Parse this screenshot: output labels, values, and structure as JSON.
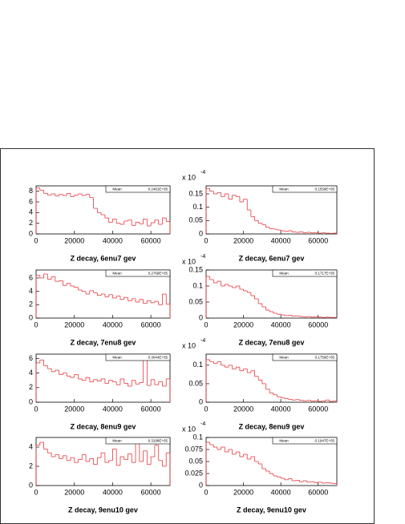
{
  "chart_data": [
    {
      "type": "histogram",
      "title": "Z decay, 6enu7 gev",
      "stats_label": "Mean",
      "stats_value": "0.2481E+05",
      "color": "#e8383d",
      "bins": [
        0,
        2000,
        4000,
        6000,
        8000,
        10000,
        12000,
        14000,
        16000,
        18000,
        20000,
        22000,
        24000,
        26000,
        28000,
        30000,
        32000,
        34000,
        36000,
        38000,
        40000,
        42000,
        44000,
        46000,
        48000,
        50000,
        52000,
        54000,
        56000,
        58000,
        60000,
        62000,
        64000,
        66000,
        68000,
        70000
      ],
      "values": [
        8.6,
        8.2,
        7.6,
        7.3,
        7.5,
        7.1,
        7.4,
        7.2,
        7.6,
        7.0,
        7.3,
        7.5,
        7.2,
        7.4,
        6.8,
        4.8,
        4.0,
        3.6,
        3.0,
        2.2,
        2.8,
        2.0,
        1.8,
        2.4,
        2.6,
        1.6,
        2.2,
        1.9,
        2.8,
        1.5,
        2.1,
        2.6,
        1.8,
        3.0,
        2.3
      ],
      "xlim": [
        0,
        70000
      ],
      "xticks": [
        0,
        20000,
        40000,
        60000
      ],
      "ylim": [
        0,
        9
      ],
      "yticks": [
        0,
        2,
        4,
        6,
        8
      ]
    },
    {
      "type": "histogram",
      "title": "Z decay, 6enu7 gev",
      "stats_label": "Mean",
      "stats_value": "0.1559E+05",
      "color": "#e8383d",
      "multiplier": "x 10",
      "exponent": "-4",
      "bins": [
        0,
        2000,
        4000,
        6000,
        8000,
        10000,
        12000,
        14000,
        16000,
        18000,
        20000,
        22000,
        24000,
        26000,
        28000,
        30000,
        32000,
        34000,
        36000,
        38000,
        40000,
        42000,
        44000,
        46000,
        48000,
        50000,
        52000,
        54000,
        56000,
        58000,
        60000,
        62000,
        64000,
        66000,
        68000,
        70000
      ],
      "values": [
        0.17,
        0.16,
        0.15,
        0.155,
        0.14,
        0.15,
        0.13,
        0.145,
        0.14,
        0.12,
        0.13,
        0.09,
        0.065,
        0.05,
        0.04,
        0.035,
        0.025,
        0.02,
        0.018,
        0.015,
        0.012,
        0.01,
        0.012,
        0.008,
        0.006,
        0.008,
        0.005,
        0.006,
        0.004,
        0.005,
        0.003,
        0.004,
        0.003,
        0.002,
        0.003
      ],
      "xlim": [
        0,
        70000
      ],
      "xticks": [
        0,
        20000,
        40000,
        60000
      ],
      "ylim": [
        0,
        0.18
      ],
      "yticks": [
        0,
        0.05,
        0.1,
        0.15
      ]
    },
    {
      "type": "histogram",
      "title": "Z decay, 7enu8 gev",
      "stats_label": "Mean",
      "stats_value": "0.2769E+05",
      "color": "#e8383d",
      "bins": [
        0,
        2000,
        4000,
        6000,
        8000,
        10000,
        12000,
        14000,
        16000,
        18000,
        20000,
        22000,
        24000,
        26000,
        28000,
        30000,
        32000,
        34000,
        36000,
        38000,
        40000,
        42000,
        44000,
        46000,
        48000,
        50000,
        52000,
        54000,
        56000,
        58000,
        60000,
        62000,
        64000,
        66000,
        68000,
        70000
      ],
      "values": [
        6.4,
        6.0,
        6.6,
        5.8,
        6.2,
        5.5,
        5.6,
        4.9,
        5.2,
        4.8,
        4.6,
        4.2,
        4.0,
        3.6,
        4.1,
        3.8,
        3.4,
        3.6,
        3.2,
        3.5,
        3.0,
        3.3,
        2.8,
        3.1,
        2.6,
        2.9,
        2.4,
        2.8,
        2.2,
        2.6,
        2.3,
        2.5,
        2.0,
        3.6,
        2.1
      ],
      "xlim": [
        0,
        70000
      ],
      "xticks": [
        0,
        20000,
        40000,
        60000
      ],
      "ylim": [
        0,
        7.2
      ],
      "yticks": [
        0,
        2,
        4,
        6
      ]
    },
    {
      "type": "histogram",
      "title": "Z decay, 7enu8 gev",
      "stats_label": "Mean",
      "stats_value": "0.1717E+05",
      "color": "#e8383d",
      "multiplier": "x 10",
      "exponent": "-4",
      "bins": [
        0,
        2000,
        4000,
        6000,
        8000,
        10000,
        12000,
        14000,
        16000,
        18000,
        20000,
        22000,
        24000,
        26000,
        28000,
        30000,
        32000,
        34000,
        36000,
        38000,
        40000,
        42000,
        44000,
        46000,
        48000,
        50000,
        52000,
        54000,
        56000,
        58000,
        60000,
        62000,
        64000,
        66000,
        68000,
        70000
      ],
      "values": [
        0.13,
        0.12,
        0.11,
        0.115,
        0.1,
        0.105,
        0.1,
        0.095,
        0.1,
        0.09,
        0.085,
        0.08,
        0.07,
        0.06,
        0.045,
        0.035,
        0.025,
        0.02,
        0.015,
        0.012,
        0.01,
        0.008,
        0.009,
        0.006,
        0.007,
        0.005,
        0.004,
        0.005,
        0.003,
        0.004,
        0.003,
        0.002,
        0.003,
        0.002,
        0.002
      ],
      "xlim": [
        0,
        70000
      ],
      "xticks": [
        0,
        20000,
        40000,
        60000
      ],
      "ylim": [
        0,
        0.15
      ],
      "yticks": [
        0,
        0.05,
        0.1,
        0.15
      ]
    },
    {
      "type": "histogram",
      "title": "Z decay, 8enu9 gev",
      "stats_label": "Mean",
      "stats_value": "0.3044E+05",
      "color": "#e8383d",
      "bins": [
        0,
        2000,
        4000,
        6000,
        8000,
        10000,
        12000,
        14000,
        16000,
        18000,
        20000,
        22000,
        24000,
        26000,
        28000,
        30000,
        32000,
        34000,
        36000,
        38000,
        40000,
        42000,
        44000,
        46000,
        48000,
        50000,
        52000,
        54000,
        56000,
        58000,
        60000,
        62000,
        64000,
        66000,
        68000,
        70000
      ],
      "values": [
        5.4,
        5.8,
        5.0,
        4.6,
        4.2,
        4.4,
        3.8,
        4.0,
        3.6,
        3.4,
        3.8,
        3.2,
        3.0,
        3.4,
        2.8,
        3.1,
        2.9,
        3.2,
        2.6,
        3.0,
        2.8,
        2.4,
        3.2,
        2.6,
        2.2,
        3.0,
        2.5,
        2.7,
        6.0,
        2.3,
        3.1,
        2.4,
        2.8,
        2.2,
        3.2
      ],
      "xlim": [
        0,
        70000
      ],
      "xticks": [
        0,
        20000,
        40000,
        60000
      ],
      "ylim": [
        0,
        6.6
      ],
      "yticks": [
        0,
        2,
        4,
        6
      ]
    },
    {
      "type": "histogram",
      "title": "Z decay, 8enu9 gev",
      "stats_label": "Mean",
      "stats_value": "0.1759E+05",
      "color": "#e8383d",
      "multiplier": "x 10",
      "exponent": "-4",
      "bins": [
        0,
        2000,
        4000,
        6000,
        8000,
        10000,
        12000,
        14000,
        16000,
        18000,
        20000,
        22000,
        24000,
        26000,
        28000,
        30000,
        32000,
        34000,
        36000,
        38000,
        40000,
        42000,
        44000,
        46000,
        48000,
        50000,
        52000,
        54000,
        56000,
        58000,
        60000,
        62000,
        64000,
        66000,
        68000,
        70000
      ],
      "values": [
        0.115,
        0.11,
        0.105,
        0.11,
        0.1,
        0.095,
        0.1,
        0.09,
        0.095,
        0.085,
        0.09,
        0.08,
        0.085,
        0.07,
        0.06,
        0.05,
        0.035,
        0.025,
        0.02,
        0.015,
        0.012,
        0.01,
        0.008,
        0.006,
        0.007,
        0.005,
        0.004,
        0.005,
        0.003,
        0.004,
        0.002,
        0.003,
        0.006,
        0.002,
        0.003
      ],
      "xlim": [
        0,
        70000
      ],
      "xticks": [
        0,
        20000,
        40000,
        60000
      ],
      "ylim": [
        0,
        0.13
      ],
      "yticks": [
        0,
        0.05,
        0.1
      ]
    },
    {
      "type": "histogram",
      "title": "Z decay, 9enu10 gev",
      "stats_label": "Mean",
      "stats_value": "0.3198E+05",
      "color": "#e8383d",
      "bins": [
        0,
        2000,
        4000,
        6000,
        8000,
        10000,
        12000,
        14000,
        16000,
        18000,
        20000,
        22000,
        24000,
        26000,
        28000,
        30000,
        32000,
        34000,
        36000,
        38000,
        40000,
        42000,
        44000,
        46000,
        48000,
        50000,
        52000,
        54000,
        56000,
        58000,
        60000,
        62000,
        64000,
        66000,
        68000,
        70000
      ],
      "values": [
        4.2,
        4.5,
        3.8,
        3.4,
        3.0,
        3.2,
        2.8,
        3.1,
        2.6,
        2.9,
        2.4,
        2.7,
        3.2,
        2.5,
        2.8,
        2.2,
        2.9,
        3.4,
        2.4,
        2.6,
        3.8,
        2.1,
        3.0,
        2.7,
        3.3,
        2.4,
        4.8,
        2.5,
        3.6,
        2.2,
        3.0,
        4.2,
        2.6,
        2.0,
        3.4
      ],
      "xlim": [
        0,
        70000
      ],
      "xticks": [
        0,
        20000,
        40000,
        60000
      ],
      "ylim": [
        0,
        5
      ],
      "yticks": [
        0,
        2,
        4
      ]
    },
    {
      "type": "histogram",
      "title": "Z decay, 9enu10 gev",
      "stats_label": "Mean",
      "stats_value": "0.1947E+05",
      "color": "#e8383d",
      "multiplier": "x 10",
      "exponent": "-4",
      "bins": [
        0,
        2000,
        4000,
        6000,
        8000,
        10000,
        12000,
        14000,
        16000,
        18000,
        20000,
        22000,
        24000,
        26000,
        28000,
        30000,
        32000,
        34000,
        36000,
        38000,
        40000,
        42000,
        44000,
        46000,
        48000,
        50000,
        52000,
        54000,
        56000,
        58000,
        60000,
        62000,
        64000,
        66000,
        68000,
        70000
      ],
      "values": [
        0.09,
        0.085,
        0.08,
        0.075,
        0.08,
        0.07,
        0.075,
        0.065,
        0.07,
        0.06,
        0.065,
        0.055,
        0.06,
        0.05,
        0.045,
        0.035,
        0.03,
        0.025,
        0.02,
        0.018,
        0.015,
        0.012,
        0.014,
        0.01,
        0.011,
        0.008,
        0.01,
        0.007,
        0.008,
        0.006,
        0.007,
        0.005,
        0.006,
        0.005,
        0.004
      ],
      "xlim": [
        0,
        70000
      ],
      "xticks": [
        0,
        20000,
        40000,
        60000
      ],
      "ylim": [
        0,
        0.1
      ],
      "yticks": [
        0,
        0.025,
        0.05,
        0.075,
        0.1
      ]
    }
  ]
}
